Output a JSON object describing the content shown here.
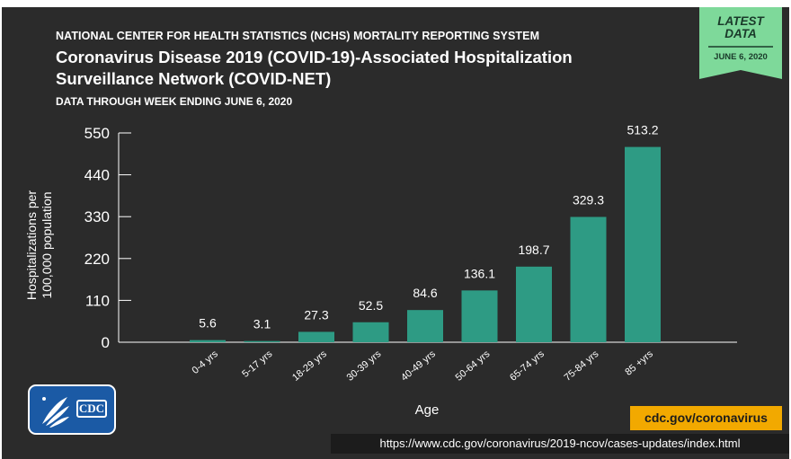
{
  "header": {
    "supertitle": "NATIONAL CENTER FOR HEALTH STATISTICS (NCHS) MORTALITY REPORTING SYSTEM",
    "title": "Coronavirus Disease 2019 (COVID-19)-Associated Hospitalization Surveillance Network (COVID-NET)",
    "subtitle": "DATA THROUGH WEEK ENDING JUNE 6, 2020"
  },
  "badge": {
    "line1": "LATEST",
    "line2": "DATA",
    "date": "JUNE 6, 2020",
    "color": "#7ed99a"
  },
  "footer": {
    "logo_text": "CDC",
    "cdc_url": "cdc.gov/coronavirus",
    "page_url": "https://www.cdc.gov/coronavirus/2019-ncov/cases-updates/index.html"
  },
  "colors": {
    "bar": "#2e9b84",
    "background": "#2b2b2b",
    "text": "#ffffff",
    "url_tag": "#f2a900"
  },
  "chart_data": {
    "type": "bar",
    "categories": [
      "0-4 yrs",
      "5-17 yrs",
      "18-29 yrs",
      "30-39 yrs",
      "40-49 yrs",
      "50-64 yrs",
      "65-74 yrs",
      "75-84 yrs",
      "85 +yrs"
    ],
    "values": [
      5.6,
      3.1,
      27.3,
      52.5,
      84.6,
      136.1,
      198.7,
      329.3,
      513.2
    ],
    "value_labels": [
      "5.6",
      "3.1",
      "27.3",
      "52.5",
      "84.6",
      "136.1",
      "198.7",
      "329.3",
      "513.2"
    ],
    "xlabel": "Age",
    "ylabel": "Hospitalizations per 100,000 population",
    "ylabel_lines": [
      "Hospitalizations per",
      "100,000 population"
    ],
    "yticks": [
      0,
      110,
      220,
      330,
      440,
      550
    ],
    "ylim": [
      0,
      550
    ],
    "grid": false,
    "legend": "none"
  }
}
